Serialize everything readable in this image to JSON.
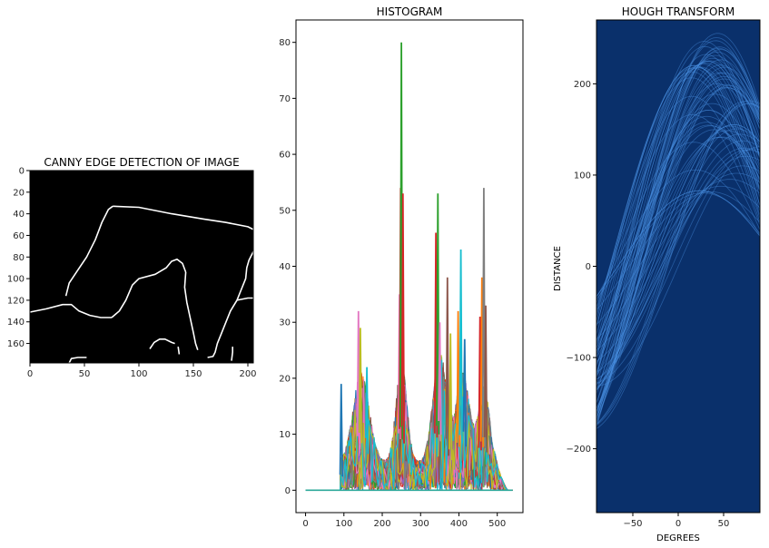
{
  "chart_data": [
    {
      "type": "heatmap",
      "title": "CANNY EDGE DETECTION OF IMAGE",
      "xlabel": "",
      "ylabel": "",
      "xlim": [
        0,
        205
      ],
      "ylim": [
        178,
        0
      ],
      "xticks": [
        0,
        50,
        100,
        150,
        200
      ],
      "yticks": [
        0,
        20,
        40,
        60,
        80,
        100,
        120,
        140,
        160
      ],
      "colormap": "gray",
      "background": "#000000",
      "edge_color": "#ffffff",
      "edges": [
        [
          [
            0,
            131
          ],
          [
            15,
            128
          ],
          [
            30,
            124
          ],
          [
            38,
            124
          ],
          [
            45,
            130
          ],
          [
            55,
            134
          ],
          [
            65,
            136
          ],
          [
            75,
            136
          ]
        ],
        [
          [
            75,
            136
          ],
          [
            82,
            130
          ],
          [
            88,
            120
          ],
          [
            94,
            106
          ],
          [
            100,
            100
          ],
          [
            115,
            96
          ],
          [
            125,
            90
          ],
          [
            130,
            84
          ],
          [
            135,
            82
          ],
          [
            140,
            86
          ],
          [
            143,
            94
          ]
        ],
        [
          [
            143,
            94
          ],
          [
            142,
            108
          ],
          [
            144,
            122
          ],
          [
            147,
            136
          ],
          [
            150,
            150
          ],
          [
            152,
            160
          ],
          [
            154,
            166
          ]
        ],
        [
          [
            33,
            116
          ],
          [
            36,
            104
          ],
          [
            44,
            92
          ],
          [
            52,
            80
          ],
          [
            60,
            64
          ],
          [
            66,
            48
          ],
          [
            72,
            36
          ],
          [
            76,
            33
          ]
        ],
        [
          [
            76,
            33
          ],
          [
            100,
            34
          ],
          [
            130,
            40
          ],
          [
            160,
            45
          ],
          [
            180,
            48
          ],
          [
            200,
            52
          ],
          [
            206,
            55
          ],
          [
            209,
            60
          ],
          [
            210,
            66
          ]
        ],
        [
          [
            210,
            66
          ],
          [
            205,
            75
          ],
          [
            201,
            83
          ],
          [
            199,
            90
          ],
          [
            198,
            100
          ],
          [
            194,
            110
          ],
          [
            190,
            120
          ],
          [
            184,
            130
          ],
          [
            180,
            140
          ],
          [
            176,
            150
          ],
          [
            172,
            160
          ],
          [
            170,
            168
          ],
          [
            168,
            172
          ],
          [
            163,
            173
          ]
        ],
        [
          [
            190,
            120
          ],
          [
            200,
            118
          ],
          [
            210,
            118
          ],
          [
            216,
            119
          ]
        ],
        [
          [
            110,
            165
          ],
          [
            114,
            159
          ],
          [
            119,
            156
          ],
          [
            124,
            156
          ],
          [
            130,
            159
          ],
          [
            133,
            160
          ]
        ],
        [
          [
            36,
            178
          ],
          [
            38,
            174
          ],
          [
            44,
            173
          ],
          [
            52,
            173
          ]
        ],
        [
          [
            136,
            163
          ],
          [
            137,
            170
          ]
        ],
        [
          [
            186,
            163
          ],
          [
            186,
            168
          ],
          [
            185,
            176
          ]
        ]
      ]
    },
    {
      "type": "line",
      "title": "HISTOGRAM",
      "xlabel": "",
      "ylabel": "",
      "xlim": [
        -25,
        567
      ],
      "ylim": [
        -4,
        84
      ],
      "xticks": [
        0,
        100,
        200,
        300,
        400,
        500
      ],
      "yticks": [
        0,
        10,
        20,
        30,
        40,
        50,
        60,
        70,
        80
      ],
      "n_series": 205,
      "baseline": {
        "x": [
          0,
          540
        ],
        "y": 0
      },
      "peaks": [
        {
          "x": 93,
          "y": 19,
          "color": "#1f77b4"
        },
        {
          "x": 138,
          "y": 32,
          "color": "#e377c2"
        },
        {
          "x": 143,
          "y": 29,
          "color": "#bcbd22"
        },
        {
          "x": 160,
          "y": 22,
          "color": "#17becf"
        },
        {
          "x": 245,
          "y": 35,
          "color": "#e377c2"
        },
        {
          "x": 248,
          "y": 54,
          "color": "#d62728"
        },
        {
          "x": 250,
          "y": 80,
          "color": "#2ca02c"
        },
        {
          "x": 254,
          "y": 53,
          "color": "#d62728"
        },
        {
          "x": 340,
          "y": 46,
          "color": "#d62728"
        },
        {
          "x": 345,
          "y": 53,
          "color": "#2ca02c"
        },
        {
          "x": 350,
          "y": 30,
          "color": "#e377c2"
        },
        {
          "x": 370,
          "y": 38,
          "color": "#8c564b"
        },
        {
          "x": 378,
          "y": 28,
          "color": "#bcbd22"
        },
        {
          "x": 398,
          "y": 32,
          "color": "#ff7f0e"
        },
        {
          "x": 405,
          "y": 43,
          "color": "#17becf"
        },
        {
          "x": 415,
          "y": 27,
          "color": "#1f77b4"
        },
        {
          "x": 455,
          "y": 31,
          "color": "#d62728"
        },
        {
          "x": 460,
          "y": 38,
          "color": "#ff7f0e"
        },
        {
          "x": 465,
          "y": 54,
          "color": "#7f7f7f"
        },
        {
          "x": 470,
          "y": 33,
          "color": "#8c564b"
        }
      ],
      "colors": [
        "#1f77b4",
        "#ff7f0e",
        "#2ca02c",
        "#d62728",
        "#9467bd",
        "#8c564b",
        "#e377c2",
        "#7f7f7f",
        "#bcbd22",
        "#17becf"
      ]
    },
    {
      "type": "heatmap",
      "title": "HOUGH TRANSFORM",
      "xlabel": "DEGREES",
      "ylabel": "DISTANCE",
      "xlim": [
        -90,
        90
      ],
      "ylim": [
        -270,
        270
      ],
      "xticks": [
        -50,
        0,
        50
      ],
      "yticks": [
        200,
        100,
        0,
        -100,
        -200
      ],
      "xtick_labels": [
        "−50",
        "0",
        "50"
      ],
      "ytick_labels": [
        "200",
        "100",
        "0",
        "−100",
        "−200"
      ],
      "colormap": "Blues",
      "background": "#0a306b",
      "curve_color": "#4a90e2"
    }
  ]
}
